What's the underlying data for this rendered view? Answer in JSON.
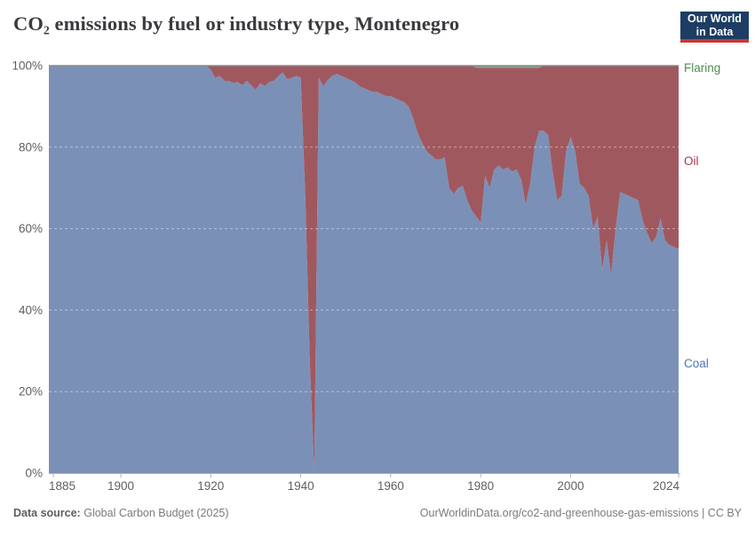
{
  "header": {
    "title": "CO₂ emissions by fuel or industry type, Montenegro",
    "logo": {
      "line1": "Our World",
      "line2": "in Data",
      "bg_color": "#1d3d63",
      "accent_color": "#cc3633"
    }
  },
  "legend": {
    "entries": [
      {
        "name": "Flaring",
        "label": "Flaring",
        "color": "#4e8d4e"
      },
      {
        "name": "Oil",
        "label": "Oil",
        "color": "#9e3a44"
      },
      {
        "name": "Coal",
        "label": "Coal",
        "color": "#4f74ad"
      }
    ]
  },
  "chart_data": {
    "type": "area",
    "stacking": "percent",
    "title": "CO₂ emissions by fuel or industry type, Montenegro",
    "xlabel": "",
    "ylabel": "",
    "ylim": [
      0,
      100
    ],
    "x_range": [
      1884,
      2024
    ],
    "x_step": 1,
    "x_ticks": [
      1885,
      1900,
      1920,
      1940,
      1960,
      1980,
      2000,
      2024
    ],
    "y_ticks": [
      0,
      20,
      40,
      60,
      80,
      100
    ],
    "y_tick_suffix": "%",
    "grid": "dashed horizontal at 20/40/60/80, solid line at 100% and 0%",
    "legend_position": "right edge, labels colored by series",
    "series": [
      {
        "name": "Coal",
        "fill_color": "#7b90b7",
        "values": [
          100,
          100,
          100,
          100,
          100,
          100,
          100,
          100,
          100,
          100,
          100,
          100,
          100,
          100,
          100,
          100,
          100,
          100,
          100,
          100,
          100,
          100,
          100,
          100,
          100,
          100,
          100,
          100,
          100,
          100,
          100,
          100,
          100,
          100,
          100,
          100,
          99,
          97,
          97.5,
          96.3,
          96.3,
          95.7,
          96,
          95.2,
          96.3,
          95.2,
          94.1,
          95.7,
          95,
          96,
          96.3,
          97.4,
          98.3,
          96.7,
          97,
          97.5,
          97,
          68,
          28,
          0.5,
          97,
          95,
          96.5,
          97.5,
          98,
          97.5,
          97,
          96.5,
          96,
          95,
          94.5,
          94,
          93.5,
          93.5,
          93,
          92.5,
          92.5,
          92,
          91.5,
          91,
          90,
          87,
          83.5,
          81,
          79,
          78,
          77,
          77,
          77.5,
          70,
          68.5,
          70,
          70.5,
          67,
          64.5,
          63,
          61.5,
          73,
          70,
          74.5,
          75.5,
          74.5,
          75,
          74,
          74.5,
          72,
          66,
          71,
          80,
          84,
          84,
          83,
          74,
          67,
          68,
          79,
          82.5,
          79,
          71,
          70,
          68,
          60,
          63,
          50,
          57,
          48.5,
          60,
          69,
          68.5,
          68,
          67.5,
          67,
          62,
          59,
          56.5,
          58,
          62.5,
          57,
          56,
          55.5,
          55
        ]
      },
      {
        "name": "Oil",
        "fill_color": "#a0585f",
        "values_rule": "remainder_to_100",
        "values_note": "Oil share = 100 − Coal − Flaring for every year (chart is stacked to 100%)"
      },
      {
        "name": "Flaring",
        "fill_color": "#7fa580",
        "values_note": "0 for all years except ~0.5% during 1979–1993",
        "values": [
          0,
          0,
          0,
          0,
          0,
          0,
          0,
          0,
          0,
          0,
          0,
          0,
          0,
          0,
          0,
          0,
          0,
          0,
          0,
          0,
          0,
          0,
          0,
          0,
          0,
          0,
          0,
          0,
          0,
          0,
          0,
          0,
          0,
          0,
          0,
          0,
          0,
          0,
          0,
          0,
          0,
          0,
          0,
          0,
          0,
          0,
          0,
          0,
          0,
          0,
          0,
          0,
          0,
          0,
          0,
          0,
          0,
          0,
          0,
          0,
          0,
          0,
          0,
          0,
          0,
          0,
          0,
          0,
          0,
          0,
          0,
          0,
          0,
          0,
          0,
          0,
          0,
          0,
          0,
          0,
          0,
          0,
          0,
          0,
          0,
          0,
          0,
          0,
          0,
          0,
          0,
          0,
          0,
          0,
          0,
          0.5,
          0.5,
          0.5,
          0.5,
          0.5,
          0.5,
          0.5,
          0.5,
          0.5,
          0.5,
          0.5,
          0.5,
          0.5,
          0.5,
          0.5,
          0,
          0,
          0,
          0,
          0,
          0,
          0,
          0,
          0,
          0,
          0,
          0,
          0,
          0,
          0,
          0,
          0,
          0,
          0,
          0,
          0,
          0,
          0,
          0,
          0,
          0,
          0,
          0,
          0,
          0,
          0
        ]
      }
    ]
  },
  "axis_style": {
    "tick_label_color": "#5f5f5f",
    "axis_line_color": "#b0b0b0",
    "top_line_color": "#8a8a8a",
    "gridline_dash_color": "rgba(255,255,255,0.45)"
  },
  "footer": {
    "source_label": "Data source:",
    "source_value": "Global Carbon Budget (2025)",
    "link": "OurWorldinData.org/co2-and-greenhouse-gas-emissions | CC BY"
  }
}
